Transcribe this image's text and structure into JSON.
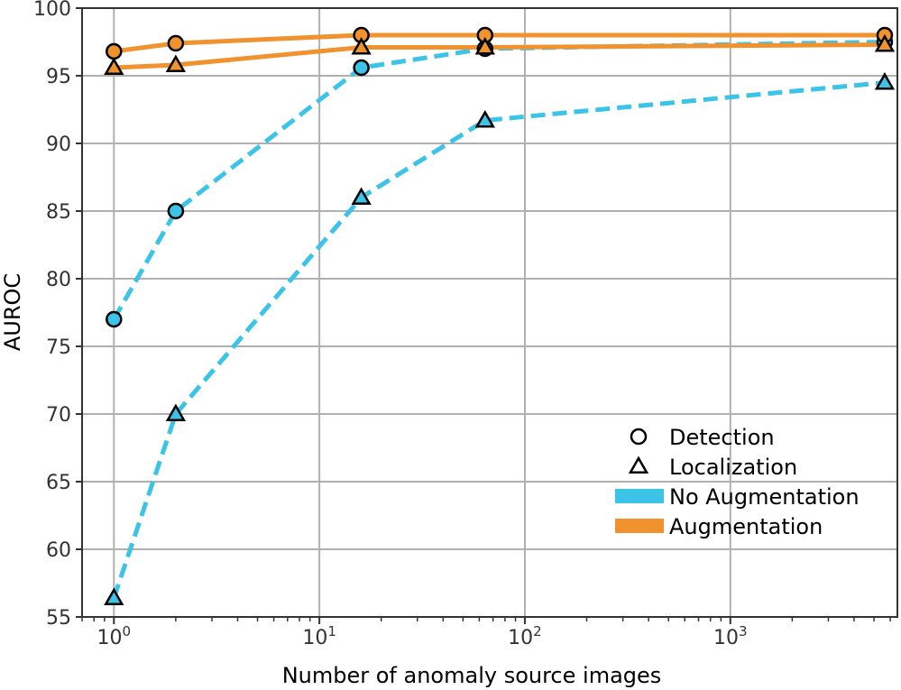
{
  "chart_data": {
    "type": "line",
    "xscale": "log",
    "xlabel": "Number of anomaly source images",
    "ylabel": "AUROC",
    "xlim": [
      0.7,
      6500
    ],
    "ylim": [
      55,
      100
    ],
    "grid": true,
    "legend_position": "lower-right",
    "x_ticks": [
      {
        "value": 1,
        "base": "10",
        "exp": "0"
      },
      {
        "value": 10,
        "base": "10",
        "exp": "1"
      },
      {
        "value": 100,
        "base": "10",
        "exp": "2"
      },
      {
        "value": 1000,
        "base": "10",
        "exp": "3"
      }
    ],
    "y_ticks": [
      "55",
      "60",
      "65",
      "70",
      "75",
      "80",
      "85",
      "90",
      "95",
      "100"
    ],
    "x": [
      1,
      2,
      16,
      64,
      5640
    ],
    "series": [
      {
        "color": "#3bc3e8",
        "style": "dashed",
        "marker": "circle",
        "y": [
          77.0,
          85.0,
          95.6,
          97.0,
          97.5
        ]
      },
      {
        "color": "#3bc3e8",
        "style": "dashed",
        "marker": "triangle",
        "y": [
          56.4,
          70.0,
          86.0,
          91.7,
          94.5
        ]
      },
      {
        "color": "#f0922e",
        "style": "solid",
        "marker": "circle",
        "y": [
          96.8,
          97.4,
          98.0,
          98.0,
          98.0
        ]
      },
      {
        "color": "#f0922e",
        "style": "solid",
        "marker": "triangle",
        "y": [
          95.6,
          95.8,
          97.1,
          97.1,
          97.3
        ]
      }
    ],
    "legend": [
      {
        "kind": "marker",
        "marker": "circle",
        "label": "Detection"
      },
      {
        "kind": "marker",
        "marker": "triangle",
        "label": "Localization"
      },
      {
        "kind": "swatch",
        "color": "#3bc3e8",
        "label": "No Augmentation"
      },
      {
        "kind": "swatch",
        "color": "#f0922e",
        "label": "Augmentation"
      }
    ]
  }
}
